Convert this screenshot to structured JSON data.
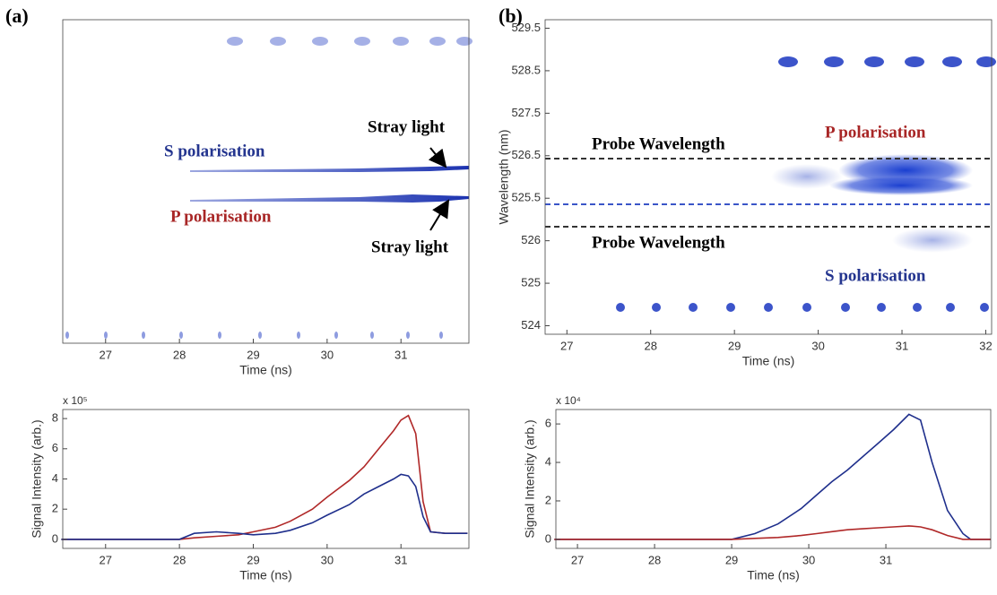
{
  "chart_data": [
    {
      "type": "image",
      "panel": "(a)",
      "x_label": "Time (ns)",
      "xlim": [
        26.42,
        31.92
      ],
      "xticks": [
        27,
        28,
        29,
        30,
        31
      ],
      "annotations": [
        "S polarisation",
        "P polarisation",
        "Stray light",
        "Stray light"
      ]
    },
    {
      "type": "line",
      "x_label": "Time (ns)",
      "y_label": "Signal Intensity (arb.)",
      "y_multiplier": "x 10⁵",
      "xlim": [
        26.42,
        31.92
      ],
      "xticks": [
        27,
        28,
        29,
        30,
        31
      ],
      "ylim": [
        -0.6,
        8.6
      ],
      "yticks": [
        0,
        2,
        4,
        6,
        8
      ],
      "x": [
        26.4,
        28.0,
        28.2,
        28.5,
        28.8,
        29.0,
        29.3,
        29.5,
        29.8,
        30.0,
        30.3,
        30.5,
        30.7,
        30.9,
        31.0,
        31.1,
        31.2,
        31.3,
        31.4,
        31.6,
        31.9
      ],
      "series": [
        {
          "color": "#b02828",
          "values": [
            0,
            0,
            0.1,
            0.2,
            0.3,
            0.5,
            0.8,
            1.2,
            2.0,
            2.8,
            3.9,
            4.8,
            6.0,
            7.2,
            7.9,
            8.2,
            7.0,
            2.5,
            0.5,
            0.4,
            0.4
          ]
        },
        {
          "color": "#1f2f8c",
          "values": [
            0,
            0,
            0.4,
            0.5,
            0.4,
            0.3,
            0.4,
            0.6,
            1.1,
            1.6,
            2.3,
            3.0,
            3.5,
            4.0,
            4.3,
            4.2,
            3.5,
            1.5,
            0.5,
            0.4,
            0.4
          ]
        }
      ]
    },
    {
      "type": "image",
      "panel": "(b)",
      "x_label": "Time (ns)",
      "y_label": "Wavelength (nm)",
      "xlim": [
        26.74,
        32.07
      ],
      "xticks": [
        27,
        28,
        29,
        30,
        31,
        32
      ],
      "ylim": [
        523.8,
        531.2
      ],
      "yticks": [
        {
          "value": 524,
          "label": "524"
        },
        {
          "value": 525,
          "label": "525"
        },
        {
          "value": 526,
          "label": "526"
        },
        {
          "value": 527,
          "label": "525.5"
        },
        {
          "value": 528,
          "label": "526.5"
        },
        {
          "value": 529,
          "label": "527.5"
        },
        {
          "value": 530,
          "label": "528.5"
        },
        {
          "value": 531,
          "label": "529.5"
        }
      ],
      "annotations": [
        "Probe Wavelength",
        "Probe Wavelength",
        "P polarisation",
        "S polarisation"
      ]
    },
    {
      "type": "line",
      "x_label": "Time (ns)",
      "y_label": "Signal Intensity (arb.)",
      "y_multiplier": "x 10⁴",
      "xlim": [
        26.72,
        32.36
      ],
      "xticks": [
        27,
        28,
        29,
        30,
        31
      ],
      "ylim": [
        -0.47,
        6.75
      ],
      "yticks": [
        0,
        2,
        4,
        6
      ],
      "x": [
        26.7,
        29.0,
        29.3,
        29.6,
        29.9,
        30.1,
        30.3,
        30.5,
        30.7,
        30.9,
        31.1,
        31.3,
        31.45,
        31.6,
        31.8,
        32.0,
        32.1,
        32.36
      ],
      "series": [
        {
          "color": "#1f2f8c",
          "values": [
            0,
            0,
            0.3,
            0.8,
            1.6,
            2.3,
            3.0,
            3.6,
            4.3,
            5.0,
            5.7,
            6.5,
            6.2,
            4.0,
            1.5,
            0.3,
            0,
            0
          ]
        },
        {
          "color": "#b02828",
          "values": [
            0,
            0,
            0.05,
            0.1,
            0.2,
            0.3,
            0.4,
            0.5,
            0.55,
            0.6,
            0.65,
            0.7,
            0.65,
            0.5,
            0.2,
            0,
            0,
            0
          ]
        }
      ]
    }
  ]
}
